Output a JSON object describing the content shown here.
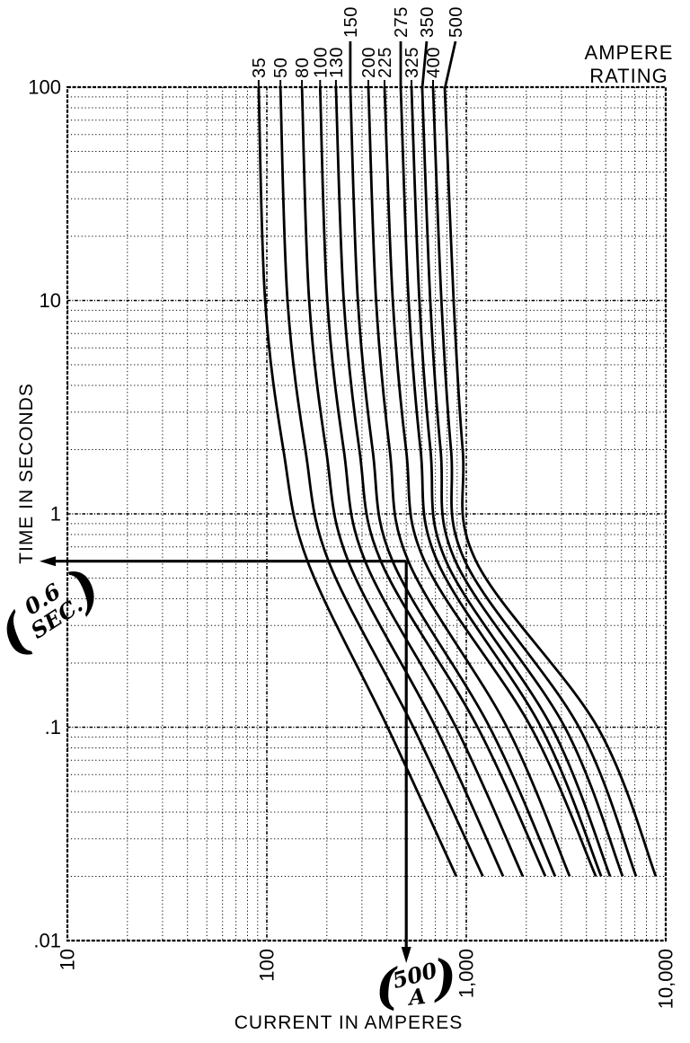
{
  "chart_data": {
    "type": "line",
    "title": "",
    "xlabel": "CURRENT IN AMPERES",
    "ylabel": "TIME IN SECONDS",
    "x_scale": "log",
    "y_scale": "log",
    "xlim": [
      10,
      10000
    ],
    "ylim": [
      0.01,
      100
    ],
    "grid": "log major and minor, dotted",
    "legend_position": "top-right",
    "legend_title": "AMPERE RATING",
    "legend_title_lines": [
      "AMPERE",
      "RATING"
    ],
    "x_ticks": [
      {
        "v": 10,
        "label": "10"
      },
      {
        "v": 100,
        "label": "100"
      },
      {
        "v": 1000,
        "label": "1,000"
      },
      {
        "v": 10000,
        "label": "10,000"
      }
    ],
    "y_ticks": [
      {
        "v": 100,
        "label": "100"
      },
      {
        "v": 10,
        "label": "10"
      },
      {
        "v": 1,
        "label": "1"
      },
      {
        "v": 0.1,
        "label": ".1"
      },
      {
        "v": 0.01,
        "label": ".01"
      }
    ],
    "series_note": "points are [seconds, amperes] read off the log-log curves",
    "series": [
      {
        "rating": "35",
        "label_row": "low",
        "label_dx": 0,
        "points": [
          [
            100,
            91
          ],
          [
            10,
            98
          ],
          [
            2,
            121
          ],
          [
            0.6,
            160
          ],
          [
            0.1,
            403
          ],
          [
            0.02,
            891
          ]
        ]
      },
      {
        "rating": "50",
        "label_row": "low",
        "label_dx": 0,
        "points": [
          [
            100,
            117
          ],
          [
            10,
            127
          ],
          [
            2,
            156
          ],
          [
            0.6,
            204
          ],
          [
            0.1,
            543
          ],
          [
            0.02,
            1210
          ]
        ]
      },
      {
        "rating": "80",
        "label_row": "low",
        "label_dx": 0,
        "points": [
          [
            100,
            150
          ],
          [
            10,
            163
          ],
          [
            2,
            198
          ],
          [
            0.6,
            256
          ],
          [
            0.1,
            702
          ],
          [
            0.02,
            1530
          ]
        ]
      },
      {
        "rating": "100",
        "label_row": "low",
        "label_dx": 0,
        "points": [
          [
            100,
            185
          ],
          [
            10,
            201
          ],
          [
            2,
            243
          ],
          [
            0.6,
            311
          ],
          [
            0.1,
            888
          ],
          [
            0.02,
            1920
          ]
        ]
      },
      {
        "rating": "130",
        "label_row": "low",
        "label_dx": 0,
        "points": [
          [
            100,
            222
          ],
          [
            10,
            243
          ],
          [
            2,
            291
          ],
          [
            0.6,
            373
          ],
          [
            0.1,
            1140
          ],
          [
            0.02,
            2490
          ]
        ]
      },
      {
        "rating": "150",
        "label_row": "high",
        "label_dx": 0,
        "points": [
          [
            100,
            262
          ],
          [
            10,
            286
          ],
          [
            2,
            339
          ],
          [
            0.6,
            427
          ],
          [
            0.1,
            1310
          ],
          [
            0.02,
            2790
          ]
        ]
      },
      {
        "rating": "200",
        "label_row": "low",
        "label_dx": 0,
        "points": [
          [
            100,
            323
          ],
          [
            10,
            353
          ],
          [
            2,
            413
          ],
          [
            0.6,
            512
          ],
          [
            0.1,
            1600
          ],
          [
            0.02,
            3300
          ]
        ]
      },
      {
        "rating": "225",
        "label_row": "low",
        "label_dx": 0,
        "points": [
          [
            100,
            389
          ],
          [
            10,
            428
          ],
          [
            2,
            499
          ],
          [
            0.6,
            618
          ],
          [
            0.1,
            2110
          ],
          [
            0.02,
            4460
          ]
        ]
      },
      {
        "rating": "275",
        "label_row": "high",
        "label_dx": 0,
        "points": [
          [
            100,
            469
          ],
          [
            10,
            514
          ],
          [
            2,
            590
          ],
          [
            0.6,
            715
          ],
          [
            0.1,
            2370
          ],
          [
            0.02,
            4750
          ]
        ]
      },
      {
        "rating": "325",
        "label_row": "low",
        "label_dx": 0,
        "points": [
          [
            100,
            531
          ],
          [
            10,
            582
          ],
          [
            2,
            661
          ],
          [
            0.6,
            792
          ],
          [
            0.1,
            2680
          ],
          [
            0.02,
            5260
          ]
        ]
      },
      {
        "rating": "350",
        "label_row": "high",
        "label_dx": 5,
        "points": [
          [
            100,
            601
          ],
          [
            10,
            660
          ],
          [
            2,
            743
          ],
          [
            0.6,
            883
          ],
          [
            0.1,
            3120
          ],
          [
            0.02,
            6080
          ]
        ]
      },
      {
        "rating": "400",
        "label_row": "low",
        "label_dx": 0,
        "points": [
          [
            100,
            681
          ],
          [
            10,
            750
          ],
          [
            2,
            838
          ],
          [
            0.6,
            986
          ],
          [
            0.1,
            3670
          ],
          [
            0.02,
            7100
          ]
        ]
      },
      {
        "rating": "500",
        "label_row": "high",
        "label_dx": 12,
        "points": [
          [
            100,
            780
          ],
          [
            10,
            864
          ],
          [
            2,
            959
          ],
          [
            0.6,
            1120
          ],
          [
            0.1,
            4550
          ],
          [
            0.02,
            8920
          ]
        ]
      }
    ],
    "annotations": {
      "paren_open": "(",
      "paren_close": ")",
      "time_callout": {
        "time_s": 0.6,
        "value": "0.6",
        "unit": "SEC."
      },
      "current_callout": {
        "current_A": 500,
        "value": "500",
        "unit": "A"
      }
    }
  }
}
